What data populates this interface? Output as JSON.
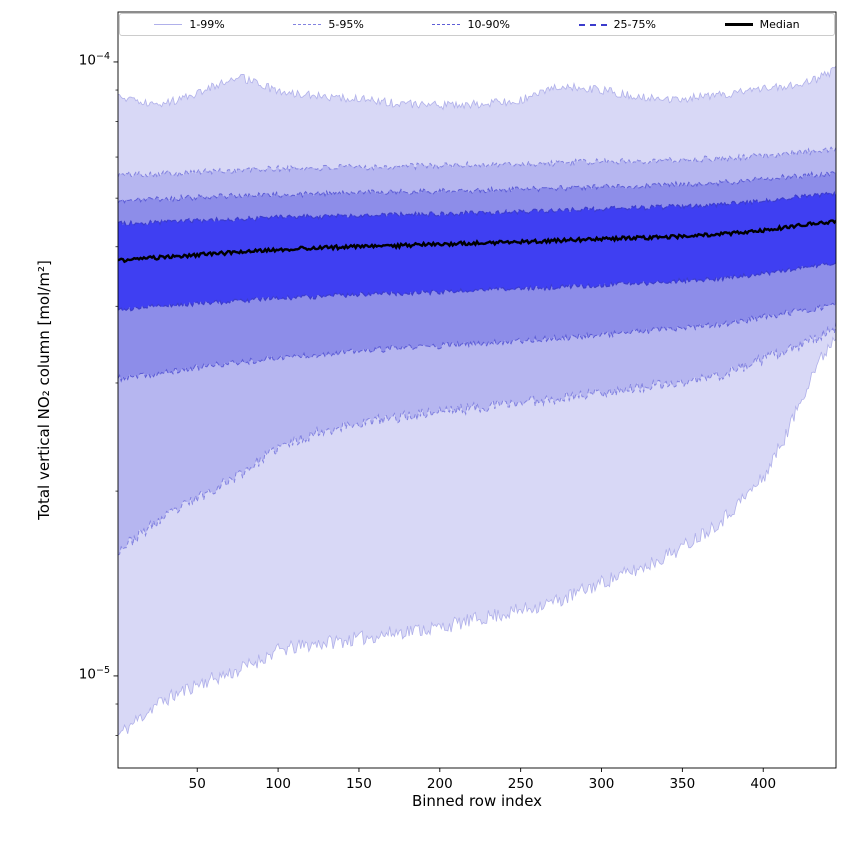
{
  "figure": {
    "background": "#ffffff",
    "axis_color": "#000000"
  },
  "chart_data": {
    "type": "area",
    "subtype": "percentile-fan-chart",
    "title": "",
    "xlabel": "Binned row index",
    "ylabel": "Total vertical NO₂ column [mol/m²]",
    "yscale": "log",
    "grid": false,
    "legend_position": "top",
    "xlim": [
      1,
      445
    ],
    "ylim": [
      7.08e-06,
      0.0001206
    ],
    "xticks": [
      50,
      100,
      150,
      200,
      250,
      300,
      350,
      400
    ],
    "yticks": [
      {
        "base": "10",
        "exp": "−4",
        "value": 0.0001
      },
      {
        "base": "10",
        "exp": "−5",
        "value": 1e-05
      }
    ],
    "x": [
      1,
      25,
      50,
      75,
      100,
      125,
      150,
      175,
      200,
      225,
      250,
      275,
      300,
      325,
      350,
      375,
      400,
      415,
      430,
      445
    ],
    "percentiles": {
      "p01": [
        8e-06,
        9e-06,
        9.7e-06,
        1.02e-05,
        1.1e-05,
        1.13e-05,
        1.15e-05,
        1.18e-05,
        1.2e-05,
        1.24e-05,
        1.28e-05,
        1.33e-05,
        1.42e-05,
        1.5e-05,
        1.62e-05,
        1.8e-05,
        2.1e-05,
        2.5e-05,
        3.1e-05,
        3.6e-05
      ],
      "p05": [
        1.6e-05,
        1.78e-05,
        1.95e-05,
        2.12e-05,
        2.35e-05,
        2.5e-05,
        2.58e-05,
        2.64e-05,
        2.7e-05,
        2.74e-05,
        2.79e-05,
        2.84e-05,
        2.9e-05,
        2.95e-05,
        3e-05,
        3.1e-05,
        3.28e-05,
        3.38e-05,
        3.52e-05,
        3.7e-05
      ],
      "p10": [
        3.05e-05,
        3.1e-05,
        3.18e-05,
        3.24e-05,
        3.3e-05,
        3.34e-05,
        3.38e-05,
        3.42e-05,
        3.45e-05,
        3.48e-05,
        3.52e-05,
        3.55e-05,
        3.6e-05,
        3.64e-05,
        3.68e-05,
        3.74e-05,
        3.84e-05,
        3.9e-05,
        3.96e-05,
        4.02e-05
      ],
      "p25": [
        3.95e-05,
        4e-05,
        4.04e-05,
        4.08e-05,
        4.12e-05,
        4.15e-05,
        4.18e-05,
        4.2e-05,
        4.22e-05,
        4.25e-05,
        4.27e-05,
        4.3e-05,
        4.33e-05,
        4.36e-05,
        4.4e-05,
        4.44e-05,
        4.52e-05,
        4.58e-05,
        4.64e-05,
        4.7e-05
      ],
      "p50": [
        4.75e-05,
        4.8e-05,
        4.85e-05,
        4.9e-05,
        4.95e-05,
        4.98e-05,
        5e-05,
        5.02e-05,
        5.05e-05,
        5.07e-05,
        5.09e-05,
        5.12e-05,
        5.15e-05,
        5.17e-05,
        5.2e-05,
        5.24e-05,
        5.32e-05,
        5.38e-05,
        5.45e-05,
        5.5e-05
      ],
      "p75": [
        5.45e-05,
        5.48e-05,
        5.52e-05,
        5.55e-05,
        5.58e-05,
        5.6e-05,
        5.62e-05,
        5.64e-05,
        5.66e-05,
        5.68e-05,
        5.7e-05,
        5.73e-05,
        5.76e-05,
        5.79e-05,
        5.82e-05,
        5.86e-05,
        5.94e-05,
        6e-05,
        6.06e-05,
        6.1e-05
      ],
      "p90": [
        5.95e-05,
        5.98e-05,
        6.02e-05,
        6.05e-05,
        6.08e-05,
        6.1e-05,
        6.12e-05,
        6.14e-05,
        6.16e-05,
        6.18e-05,
        6.2e-05,
        6.23e-05,
        6.26e-05,
        6.29e-05,
        6.32e-05,
        6.36e-05,
        6.44e-05,
        6.5e-05,
        6.55e-05,
        6.6e-05
      ],
      "p95": [
        6.55e-05,
        6.58e-05,
        6.62e-05,
        6.66e-05,
        6.7e-05,
        6.72e-05,
        6.74e-05,
        6.76e-05,
        6.78e-05,
        6.8e-05,
        6.82e-05,
        6.85e-05,
        6.88e-05,
        6.9e-05,
        6.93e-05,
        6.97e-05,
        7.04e-05,
        7.1e-05,
        7.15e-05,
        7.2e-05
      ],
      "p99": [
        8.8e-05,
        8.45e-05,
        8.9e-05,
        9.5e-05,
        8.95e-05,
        8.8e-05,
        8.7e-05,
        8.55e-05,
        8.5e-05,
        8.55e-05,
        8.65e-05,
        9.15e-05,
        9e-05,
        8.75e-05,
        8.7e-05,
        8.85e-05,
        9.05e-05,
        9.1e-05,
        9.3e-05,
        9.7e-05
      ]
    },
    "bands": [
      {
        "label": "1-99%",
        "lower": "p01",
        "upper": "p99",
        "fill": "#d8d8f6",
        "edge_color": "#b0b0ea",
        "edge_dash": "",
        "edge_width": 0.8
      },
      {
        "label": "5-95%",
        "lower": "p05",
        "upper": "p95",
        "fill": "#b6b6f0",
        "edge_color": "#8383e0",
        "edge_dash": "4 2.5",
        "edge_width": 1
      },
      {
        "label": "10-90%",
        "lower": "p10",
        "upper": "p90",
        "fill": "#8d8de9",
        "edge_color": "#5d5dd6",
        "edge_dash": "5 2.5",
        "edge_width": 1
      },
      {
        "label": "25-75%",
        "lower": "p25",
        "upper": "p75",
        "fill": "#3f3ff2",
        "edge_color": "#3c3ccc",
        "edge_dash": "6.5 2.5",
        "edge_width": 1.2
      }
    ],
    "median": {
      "label": "Median",
      "series": "p50",
      "color": "#000000",
      "width": 2.4
    },
    "legend_items": [
      {
        "label": "1-99%",
        "color": "#b0b0ea",
        "dash": "solid",
        "width": 1
      },
      {
        "label": "5-95%",
        "color": "#8383e0",
        "dash": "dashed",
        "width": 1
      },
      {
        "label": "10-90%",
        "color": "#5d5dd6",
        "dash": "dashed",
        "width": 1
      },
      {
        "label": "25-75%",
        "color": "#3c3ccc",
        "dash": "dashed",
        "width": 2
      },
      {
        "label": "Median",
        "color": "#000000",
        "dash": "solid",
        "width": 3
      }
    ]
  }
}
